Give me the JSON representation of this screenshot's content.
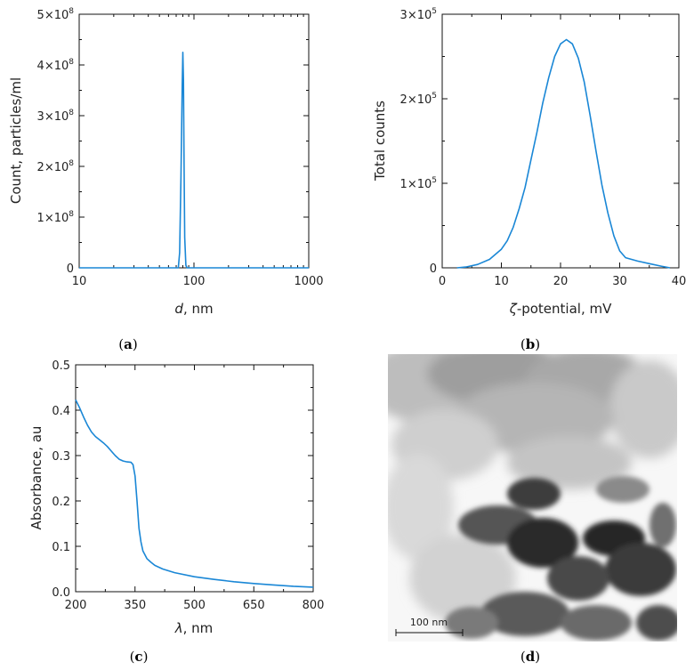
{
  "chart_data": [
    {
      "id": "a",
      "type": "line",
      "caption": "a",
      "xlabel_italic": "d",
      "xlabel_rest": ", nm",
      "ylabel": "Count, particles/ml",
      "xscale": "log",
      "xlim": [
        10,
        1000
      ],
      "ylim": [
        0,
        500000000
      ],
      "xticks": [
        {
          "v": 10,
          "label": "10"
        },
        {
          "v": 100,
          "label": "100"
        },
        {
          "v": 1000,
          "label": "1000"
        }
      ],
      "yticks": [
        {
          "v": 0,
          "base": "0",
          "exp": ""
        },
        {
          "v": 100000000,
          "base": "1×10",
          "exp": "8"
        },
        {
          "v": 200000000,
          "base": "2×10",
          "exp": "8"
        },
        {
          "v": 300000000,
          "base": "3×10",
          "exp": "8"
        },
        {
          "v": 400000000,
          "base": "4×10",
          "exp": "8"
        },
        {
          "v": 500000000,
          "base": "5×10",
          "exp": "8"
        }
      ],
      "series": [
        {
          "x": [
            10,
            70,
            73,
            75,
            77,
            79,
            80,
            81,
            82,
            83,
            85,
            87,
            90,
            1000
          ],
          "y": [
            0,
            0,
            0,
            30000000,
            180000000,
            360000000,
            425000000,
            370000000,
            200000000,
            60000000,
            5000000,
            0,
            0,
            0
          ]
        }
      ]
    },
    {
      "id": "b",
      "type": "line",
      "caption": "b",
      "xlabel_italic": "ζ",
      "xlabel_rest": "-potential, mV",
      "ylabel": "Total counts",
      "xlim": [
        0,
        40
      ],
      "ylim": [
        0,
        300000
      ],
      "xticks": [
        {
          "v": 0,
          "label": "0"
        },
        {
          "v": 10,
          "label": "10"
        },
        {
          "v": 20,
          "label": "20"
        },
        {
          "v": 30,
          "label": "30"
        },
        {
          "v": 40,
          "label": "40"
        }
      ],
      "yticks": [
        {
          "v": 0,
          "base": "0",
          "exp": ""
        },
        {
          "v": 100000,
          "base": "1×10",
          "exp": "5"
        },
        {
          "v": 200000,
          "base": "2×10",
          "exp": "5"
        },
        {
          "v": 300000,
          "base": "3×10",
          "exp": "5"
        }
      ],
      "series": [
        {
          "x": [
            2.5,
            4,
            6,
            8,
            10,
            11,
            12,
            13,
            14,
            15,
            16,
            17,
            18,
            19,
            20,
            21,
            22,
            23,
            24,
            25,
            26,
            27,
            28,
            29,
            30,
            31,
            33,
            35,
            37,
            38.5
          ],
          "y": [
            0,
            1000,
            4000,
            10000,
            22000,
            32000,
            48000,
            70000,
            95000,
            128000,
            160000,
            195000,
            225000,
            250000,
            265000,
            270000,
            265000,
            248000,
            220000,
            180000,
            138000,
            98000,
            65000,
            38000,
            20000,
            12000,
            8000,
            5000,
            2000,
            0
          ]
        }
      ]
    },
    {
      "id": "c",
      "type": "line",
      "caption": "c",
      "xlabel_italic": "λ",
      "xlabel_rest": ", nm",
      "ylabel": "Absorbance, au",
      "xlim": [
        200,
        800
      ],
      "ylim": [
        0,
        0.5
      ],
      "xticks": [
        {
          "v": 200,
          "label": "200"
        },
        {
          "v": 350,
          "label": "350"
        },
        {
          "v": 500,
          "label": "500"
        },
        {
          "v": 650,
          "label": "650"
        },
        {
          "v": 800,
          "label": "800"
        }
      ],
      "yticks": [
        {
          "v": 0,
          "base": "0.0",
          "exp": ""
        },
        {
          "v": 0.1,
          "base": "0.1",
          "exp": ""
        },
        {
          "v": 0.2,
          "base": "0.2",
          "exp": ""
        },
        {
          "v": 0.3,
          "base": "0.3",
          "exp": ""
        },
        {
          "v": 0.4,
          "base": "0.4",
          "exp": ""
        },
        {
          "v": 0.5,
          "base": "0.5",
          "exp": ""
        }
      ],
      "series": [
        {
          "x": [
            200,
            210,
            220,
            230,
            240,
            250,
            260,
            270,
            280,
            290,
            300,
            310,
            320,
            330,
            340,
            345,
            350,
            355,
            360,
            365,
            370,
            380,
            390,
            400,
            420,
            450,
            500,
            550,
            600,
            650,
            700,
            750,
            800
          ],
          "y": [
            0.423,
            0.405,
            0.385,
            0.367,
            0.352,
            0.342,
            0.335,
            0.328,
            0.32,
            0.31,
            0.3,
            0.292,
            0.288,
            0.286,
            0.285,
            0.28,
            0.255,
            0.2,
            0.14,
            0.11,
            0.09,
            0.073,
            0.065,
            0.058,
            0.05,
            0.042,
            0.033,
            0.027,
            0.022,
            0.018,
            0.015,
            0.012,
            0.01
          ]
        }
      ]
    }
  ],
  "panel_d": {
    "caption": "d",
    "scale_label": "100 nm"
  }
}
